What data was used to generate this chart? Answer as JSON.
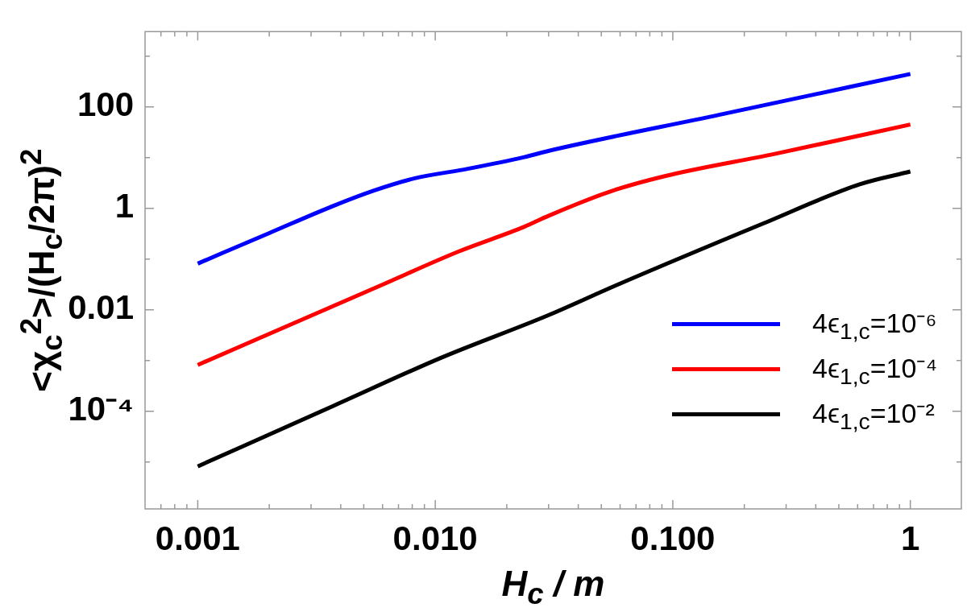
{
  "chart_data": {
    "type": "line",
    "xlabel": "H$_{c}$ / m",
    "ylabel": "<χ$_{c}$$^{2}$>/(H$_{c}$/2π)$^{2}$",
    "log": "xy",
    "xlim": [
      0.000609,
      1.64
    ],
    "ylim": [
      1.19e-06,
      3040
    ],
    "xticks": [
      {
        "value": 0.001,
        "label": "0.001"
      },
      {
        "value": 0.002,
        "label": null
      },
      {
        "value": 0.003,
        "label": null
      },
      {
        "value": 0.004,
        "label": null
      },
      {
        "value": 0.005,
        "label": null
      },
      {
        "value": 0.006,
        "label": null
      },
      {
        "value": 0.007,
        "label": null
      },
      {
        "value": 0.008,
        "label": null
      },
      {
        "value": 0.009,
        "label": null
      },
      {
        "value": 0.01,
        "label": "0.010"
      },
      {
        "value": 0.02,
        "label": null
      },
      {
        "value": 0.03,
        "label": null
      },
      {
        "value": 0.04,
        "label": null
      },
      {
        "value": 0.05,
        "label": null
      },
      {
        "value": 0.06,
        "label": null
      },
      {
        "value": 0.07,
        "label": null
      },
      {
        "value": 0.08,
        "label": null
      },
      {
        "value": 0.09,
        "label": null
      },
      {
        "value": 0.1,
        "label": "0.100"
      },
      {
        "value": 0.2,
        "label": null
      },
      {
        "value": 0.3,
        "label": null
      },
      {
        "value": 0.4,
        "label": null
      },
      {
        "value": 0.5,
        "label": null
      },
      {
        "value": 0.6,
        "label": null
      },
      {
        "value": 0.7,
        "label": null
      },
      {
        "value": 0.8,
        "label": null
      },
      {
        "value": 0.9,
        "label": null
      },
      1,
      {
        "value": 0.0007,
        "label": null
      },
      {
        "value": 0.0008,
        "label": null
      },
      {
        "value": 0.0009,
        "label": null
      }
    ],
    "yticks": [
      {
        "value": 1e-05,
        "label": null
      },
      {
        "value": 0.001,
        "label": null
      },
      {
        "value": 0.1,
        "label": null
      },
      {
        "value": 10,
        "label": null
      },
      {
        "value": 1000,
        "label": null
      },
      {
        "value": 0.0001,
        "label": "10⁻⁴"
      },
      0.01,
      1,
      100
    ],
    "legend": "bottom right",
    "marker": "none",
    "line_style": "solid",
    "series": [
      {
        "name": "4ϵ$_{1,c}$=10⁻⁶",
        "color": "#0000ff",
        "x": [
          0.001,
          0.002,
          0.00373,
          0.00552,
          0.00814,
          0.0137,
          0.0237,
          0.0299,
          0.158,
          1
        ],
        "values": [
          0.0813,
          0.325,
          1.12,
          2.24,
          3.87,
          6.0,
          10.2,
          13.5,
          70,
          443
        ]
      },
      {
        "name": "4ϵ$_{1,c}$=10⁻⁴",
        "color": "#ff0000",
        "x": [
          0.001,
          0.00581,
          0.0125,
          0.0237,
          0.0299,
          0.0533,
          0.0918,
          0.271,
          1
        ],
        "values": [
          0.000818,
          0.0294,
          0.14,
          0.432,
          0.707,
          2.07,
          4.26,
          11.9,
          44.8
        ]
      },
      {
        "name": "4ϵ$_{1,c}$=10⁻²",
        "color": "#000000",
        "x": [
          0.001,
          0.00373,
          0.01057,
          0.0299,
          0.0578,
          0.237,
          0.612,
          1
        ],
        "values": [
          8.2e-06,
          0.000128,
          0.00113,
          0.0078,
          0.0304,
          0.488,
          2.97,
          5.3
        ]
      }
    ]
  }
}
